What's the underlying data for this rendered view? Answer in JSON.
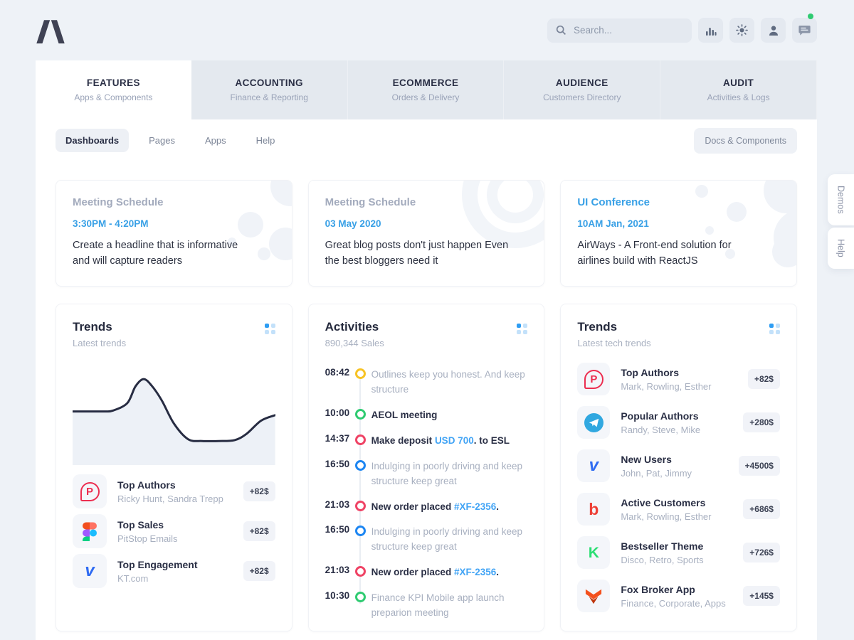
{
  "topbar": {
    "search_placeholder": "Search...",
    "buttons": [
      {
        "icon": "stats-icon"
      },
      {
        "icon": "sun-icon"
      },
      {
        "icon": "user-icon"
      },
      {
        "icon": "chat-icon",
        "notification": true
      }
    ]
  },
  "tabs": [
    {
      "label": "FEATURES",
      "sublabel": "Apps & Components",
      "active": true
    },
    {
      "label": "ACCOUNTING",
      "sublabel": "Finance & Reporting",
      "active": false
    },
    {
      "label": "ECOMMERCE",
      "sublabel": "Orders & Delivery",
      "active": false
    },
    {
      "label": "AUDIENCE",
      "sublabel": "Customers Directory",
      "active": false
    },
    {
      "label": "AUDIT",
      "sublabel": "Activities & Logs",
      "active": false
    }
  ],
  "subnav": {
    "items": [
      {
        "label": "Dashboards",
        "active": true
      },
      {
        "label": "Pages",
        "active": false
      },
      {
        "label": "Apps",
        "active": false
      },
      {
        "label": "Help",
        "active": false
      }
    ],
    "docs_button": "Docs & Components"
  },
  "info_cards": [
    {
      "title": "Meeting Schedule",
      "title_style": "muted",
      "time": "3:30PM - 4:20PM",
      "text": "Create a headline that is informative and will capture readers",
      "deco": "molecule"
    },
    {
      "title": "Meeting Schedule",
      "title_style": "muted",
      "time": "03 May 2020",
      "text": "Great blog posts don't just happen Even the best bloggers need it",
      "deco": "rings"
    },
    {
      "title": "UI Conference",
      "title_style": "accent",
      "time": "10AM Jan, 2021",
      "text": "AirWays - A Front-end solution for airlines build with ReactJS",
      "deco": "dots"
    }
  ],
  "trends_left": {
    "title": "Trends",
    "subtitle": "Latest trends",
    "items": [
      {
        "icon": "producthunt",
        "name": "Top Authors",
        "desc": "Ricky Hunt, Sandra Trepp",
        "badge": "+82$"
      },
      {
        "icon": "figma",
        "name": "Top Sales",
        "desc": "PitStop Emails",
        "badge": "+82$"
      },
      {
        "icon": "vimeo",
        "name": "Top Engagement",
        "desc": "KT.com",
        "badge": "+82$"
      }
    ]
  },
  "chart_data": {
    "type": "area",
    "title": "Latest trends sparkline",
    "x": [
      0,
      8,
      16,
      20,
      27,
      31,
      35,
      39,
      44,
      50,
      57,
      64,
      72,
      80,
      86,
      93,
      100
    ],
    "y": [
      42,
      42,
      42,
      41,
      33,
      15,
      7,
      14,
      30,
      55,
      72,
      74,
      74,
      73,
      66,
      52,
      46
    ],
    "y_meaning": "percent from top of plot area",
    "line_color": "#272c42",
    "fill_color": "#edf1f7",
    "grid": false,
    "axes": false
  },
  "activities": {
    "title": "Activities",
    "subtitle": "890,344 Sales",
    "items": [
      {
        "time": "08:42",
        "dot_color": "#f7c325",
        "muted": true,
        "parts": [
          {
            "t": "Outlines keep you honest. And keep structure"
          }
        ]
      },
      {
        "time": "10:00",
        "dot_color": "#2fcb71",
        "muted": false,
        "parts": [
          {
            "t": "AEOL meeting"
          }
        ]
      },
      {
        "time": "14:37",
        "dot_color": "#ef4365",
        "muted": false,
        "parts": [
          {
            "t": "Make deposit "
          },
          {
            "t": "USD 700",
            "link": true
          },
          {
            "t": ". to ESL"
          }
        ]
      },
      {
        "time": "16:50",
        "dot_color": "#1d86f2",
        "muted": true,
        "parts": [
          {
            "t": "Indulging in poorly driving and keep structure keep great"
          }
        ]
      },
      {
        "time": "21:03",
        "dot_color": "#ef4365",
        "muted": false,
        "parts": [
          {
            "t": "New order placed "
          },
          {
            "t": "#XF-2356",
            "link": true
          },
          {
            "t": "."
          }
        ]
      },
      {
        "time": "16:50",
        "dot_color": "#1d86f2",
        "muted": true,
        "parts": [
          {
            "t": "Indulging in poorly driving and keep structure keep great"
          }
        ]
      },
      {
        "time": "21:03",
        "dot_color": "#ef4365",
        "muted": false,
        "parts": [
          {
            "t": "New order placed "
          },
          {
            "t": "#XF-2356",
            "link": true
          },
          {
            "t": "."
          }
        ]
      },
      {
        "time": "10:30",
        "dot_color": "#2fcb71",
        "muted": true,
        "parts": [
          {
            "t": "Finance KPI Mobile app launch preparion meeting"
          }
        ]
      }
    ]
  },
  "trends_right": {
    "title": "Trends",
    "subtitle": "Latest tech trends",
    "items": [
      {
        "icon": "producthunt",
        "name": "Top Authors",
        "desc": "Mark, Rowling, Esther",
        "badge": "+82$"
      },
      {
        "icon": "telegram",
        "name": "Popular Authors",
        "desc": "Randy, Steve, Mike",
        "badge": "+280$"
      },
      {
        "icon": "vimeo",
        "name": "New Users",
        "desc": "John, Pat, Jimmy",
        "badge": "+4500$"
      },
      {
        "icon": "bitly",
        "name": "Active Customers",
        "desc": "Mark, Rowling, Esther",
        "badge": "+686$"
      },
      {
        "icon": "kickstarter",
        "name": "Bestseller Theme",
        "desc": "Disco, Retro, Sports",
        "badge": "+726$"
      },
      {
        "icon": "fox",
        "name": "Fox Broker App",
        "desc": "Finance, Corporate, Apps",
        "badge": "+145$"
      }
    ]
  },
  "side_tabs": [
    {
      "label": "Demos"
    },
    {
      "label": "Help"
    }
  ],
  "colors": {
    "page_bg": "#eef2f7",
    "panel_bg": "#ffffff",
    "accent_blue": "#38a0e6",
    "link_blue": "#42a4f5",
    "notification_green": "#2fcb71",
    "dot_yellow": "#f7c325",
    "dot_green": "#2fcb71",
    "dot_red": "#ef4365",
    "dot_blue": "#1d86f2"
  }
}
